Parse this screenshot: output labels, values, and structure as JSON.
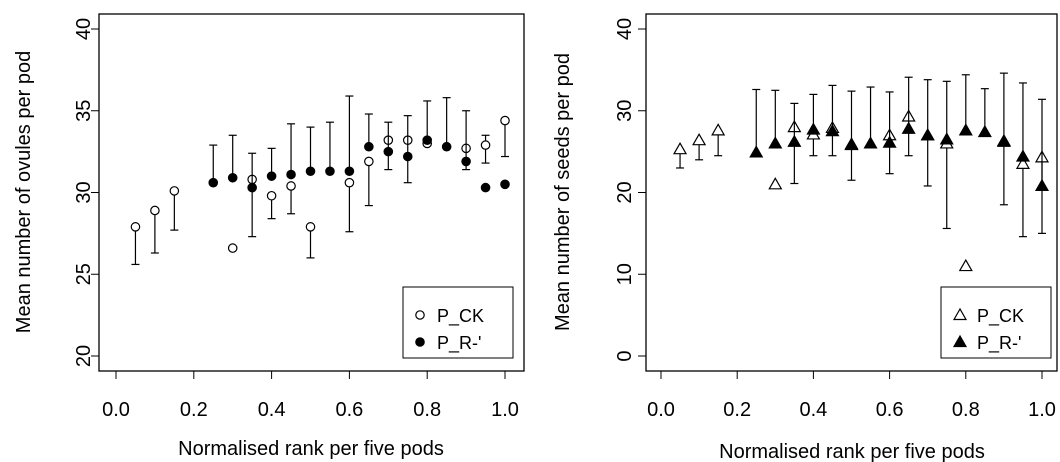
{
  "chart_data": [
    {
      "type": "scatter",
      "xlabel": "Normalised rank per five pods",
      "ylabel": "Mean number of ovules per pod",
      "xlim": [
        0.0,
        1.0
      ],
      "ylim": [
        20,
        40
      ],
      "xticks": [
        "0.0",
        "0.2",
        "0.4",
        "0.6",
        "0.8",
        "1.0"
      ],
      "yticks": [
        "20",
        "25",
        "30",
        "35",
        "40"
      ],
      "legend_position": "bottom-right",
      "marker": "circle",
      "series": [
        {
          "name": "P_CK",
          "marker_fill": "open",
          "points": [
            {
              "x": 0.05,
              "y": 27.9,
              "lo": 25.6,
              "hi": 27.9
            },
            {
              "x": 0.1,
              "y": 28.9,
              "lo": 26.3,
              "hi": 28.9
            },
            {
              "x": 0.15,
              "y": 30.1,
              "lo": 27.7,
              "hi": 30.1
            },
            {
              "x": 0.3,
              "y": 26.6,
              "lo": 26.6,
              "hi": 26.6
            },
            {
              "x": 0.35,
              "y": 30.8,
              "lo": 30.8,
              "hi": 30.8
            },
            {
              "x": 0.4,
              "y": 29.8,
              "lo": 28.4,
              "hi": 29.8
            },
            {
              "x": 0.45,
              "y": 30.4,
              "lo": 28.7,
              "hi": 30.4
            },
            {
              "x": 0.5,
              "y": 27.9,
              "lo": 26.0,
              "hi": 27.9
            },
            {
              "x": 0.6,
              "y": 30.6,
              "lo": 27.6,
              "hi": 30.6
            },
            {
              "x": 0.65,
              "y": 31.9,
              "lo": 29.2,
              "hi": 31.9
            },
            {
              "x": 0.7,
              "y": 33.2,
              "lo": 33.2,
              "hi": 33.2
            },
            {
              "x": 0.75,
              "y": 33.2,
              "lo": 33.2,
              "hi": 33.2
            },
            {
              "x": 0.8,
              "y": 33.0,
              "lo": 33.0,
              "hi": 33.0
            },
            {
              "x": 0.9,
              "y": 32.7,
              "lo": 32.7,
              "hi": 32.7
            },
            {
              "x": 0.95,
              "y": 32.9,
              "lo": 31.8,
              "hi": 33.5
            },
            {
              "x": 1.0,
              "y": 34.4,
              "lo": 32.2,
              "hi": 34.4
            }
          ]
        },
        {
          "name": "P_R-'",
          "marker_fill": "filled",
          "points": [
            {
              "x": 0.25,
              "y": 30.6,
              "lo": 30.6,
              "hi": 32.9
            },
            {
              "x": 0.3,
              "y": 30.9,
              "lo": 30.9,
              "hi": 33.5
            },
            {
              "x": 0.35,
              "y": 30.3,
              "lo": 27.3,
              "hi": 32.4
            },
            {
              "x": 0.4,
              "y": 31.0,
              "lo": 31.0,
              "hi": 32.7
            },
            {
              "x": 0.45,
              "y": 31.1,
              "lo": 31.1,
              "hi": 34.2
            },
            {
              "x": 0.5,
              "y": 31.3,
              "lo": 31.3,
              "hi": 34.0
            },
            {
              "x": 0.55,
              "y": 31.3,
              "lo": 31.3,
              "hi": 34.3
            },
            {
              "x": 0.6,
              "y": 31.3,
              "lo": 31.3,
              "hi": 35.9
            },
            {
              "x": 0.65,
              "y": 32.8,
              "lo": 32.8,
              "hi": 34.8
            },
            {
              "x": 0.7,
              "y": 32.5,
              "lo": 31.4,
              "hi": 34.3
            },
            {
              "x": 0.75,
              "y": 32.2,
              "lo": 30.6,
              "hi": 34.7
            },
            {
              "x": 0.8,
              "y": 33.2,
              "lo": 33.2,
              "hi": 35.6
            },
            {
              "x": 0.85,
              "y": 32.8,
              "lo": 32.8,
              "hi": 35.8
            },
            {
              "x": 0.9,
              "y": 31.9,
              "lo": 31.4,
              "hi": 35.0
            },
            {
              "x": 0.95,
              "y": 30.3,
              "lo": 30.3,
              "hi": 30.3
            },
            {
              "x": 1.0,
              "y": 30.5,
              "lo": 30.5,
              "hi": 30.5
            }
          ]
        }
      ]
    },
    {
      "type": "scatter",
      "xlabel": "Normalised rank per five pods",
      "ylabel": "Mean number of seeds per pod",
      "xlim": [
        0.0,
        1.0
      ],
      "ylim": [
        0,
        40
      ],
      "xticks": [
        "0.0",
        "0.2",
        "0.4",
        "0.6",
        "0.8",
        "1.0"
      ],
      "yticks": [
        "0",
        "10",
        "20",
        "30",
        "40"
      ],
      "legend_position": "bottom-right",
      "marker": "triangle",
      "series": [
        {
          "name": "P_CK",
          "marker_fill": "open",
          "points": [
            {
              "x": 0.05,
              "y": 25.3,
              "lo": 23.0,
              "hi": 25.3
            },
            {
              "x": 0.1,
              "y": 26.4,
              "lo": 24.0,
              "hi": 26.4
            },
            {
              "x": 0.15,
              "y": 27.6,
              "lo": 24.5,
              "hi": 27.6
            },
            {
              "x": 0.3,
              "y": 21.0,
              "lo": 21.0,
              "hi": 21.0
            },
            {
              "x": 0.35,
              "y": 28.0,
              "lo": 28.0,
              "hi": 28.0
            },
            {
              "x": 0.4,
              "y": 27.1,
              "lo": 24.5,
              "hi": 27.1
            },
            {
              "x": 0.45,
              "y": 27.9,
              "lo": 24.5,
              "hi": 27.9
            },
            {
              "x": 0.5,
              "y": 25.8,
              "lo": 21.5,
              "hi": 25.8
            },
            {
              "x": 0.6,
              "y": 27.0,
              "lo": 22.3,
              "hi": 27.0
            },
            {
              "x": 0.65,
              "y": 29.3,
              "lo": 24.5,
              "hi": 29.3
            },
            {
              "x": 0.7,
              "y": 27.0,
              "lo": 20.8,
              "hi": 27.0
            },
            {
              "x": 0.75,
              "y": 26.0,
              "lo": 15.6,
              "hi": 26.0
            },
            {
              "x": 0.8,
              "y": 11.0,
              "lo": 11.0,
              "hi": 11.0
            },
            {
              "x": 0.9,
              "y": 26.2,
              "lo": 18.5,
              "hi": 26.2
            },
            {
              "x": 0.95,
              "y": 23.5,
              "lo": 14.6,
              "hi": 23.5
            },
            {
              "x": 1.0,
              "y": 24.3,
              "lo": 15.0,
              "hi": 24.3
            }
          ]
        },
        {
          "name": "P_R-'",
          "marker_fill": "filled",
          "points": [
            {
              "x": 0.25,
              "y": 24.9,
              "lo": 24.9,
              "hi": 32.6
            },
            {
              "x": 0.3,
              "y": 26.0,
              "lo": 26.0,
              "hi": 32.5
            },
            {
              "x": 0.35,
              "y": 26.2,
              "lo": 21.1,
              "hi": 30.9
            },
            {
              "x": 0.4,
              "y": 27.7,
              "lo": 27.7,
              "hi": 32.0
            },
            {
              "x": 0.45,
              "y": 27.5,
              "lo": 27.5,
              "hi": 33.1
            },
            {
              "x": 0.5,
              "y": 25.9,
              "lo": 25.9,
              "hi": 32.4
            },
            {
              "x": 0.55,
              "y": 26.0,
              "lo": 26.0,
              "hi": 32.9
            },
            {
              "x": 0.6,
              "y": 26.1,
              "lo": 26.1,
              "hi": 32.3
            },
            {
              "x": 0.65,
              "y": 27.8,
              "lo": 27.8,
              "hi": 34.1
            },
            {
              "x": 0.7,
              "y": 27.0,
              "lo": 27.0,
              "hi": 33.8
            },
            {
              "x": 0.75,
              "y": 26.5,
              "lo": 26.5,
              "hi": 33.6
            },
            {
              "x": 0.8,
              "y": 27.6,
              "lo": 27.6,
              "hi": 34.4
            },
            {
              "x": 0.85,
              "y": 27.4,
              "lo": 27.4,
              "hi": 32.7
            },
            {
              "x": 0.9,
              "y": 26.3,
              "lo": 26.3,
              "hi": 34.6
            },
            {
              "x": 0.95,
              "y": 24.4,
              "lo": 24.4,
              "hi": 33.4
            },
            {
              "x": 1.0,
              "y": 20.8,
              "lo": 20.8,
              "hi": 31.4
            }
          ]
        }
      ]
    }
  ]
}
